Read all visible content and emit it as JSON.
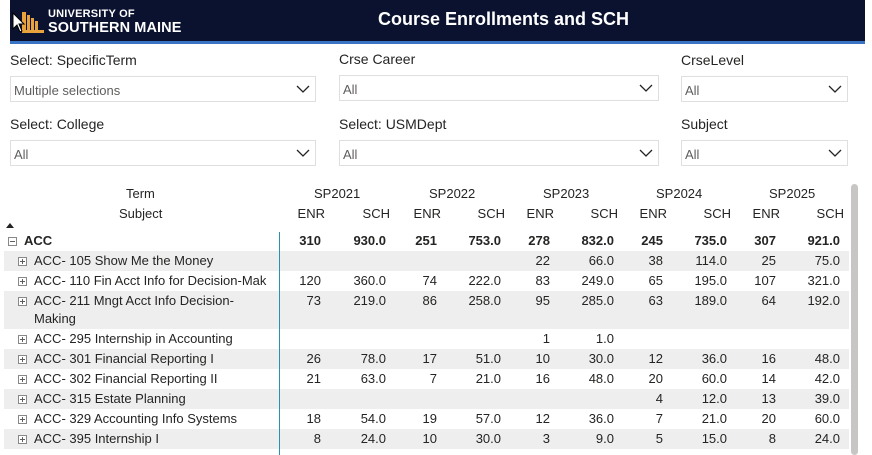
{
  "header": {
    "logo_line1": "UNIVERSITY OF",
    "logo_line2": "SOUTHERN MAINE",
    "title": "Course Enrollments and SCH"
  },
  "slicers": [
    {
      "label": "Select: SpecificTerm",
      "value": "Multiple selections"
    },
    {
      "label": "Crse Career",
      "value": "All"
    },
    {
      "label": "CrseLevel",
      "value": "All"
    },
    {
      "label": "Select: College",
      "value": "All"
    },
    {
      "label": "Select: USMDept",
      "value": "All"
    },
    {
      "label": "Subject",
      "value": "All"
    }
  ],
  "matrix": {
    "row_header_term": "Term",
    "row_header_subject": "Subject",
    "terms": [
      "SP2021",
      "SP2022",
      "SP2023",
      "SP2024",
      "SP2025"
    ],
    "measures": [
      "ENR",
      "SCH"
    ],
    "group": {
      "label": "ACC",
      "values": [
        "310",
        "930.0",
        "251",
        "753.0",
        "278",
        "832.0",
        "245",
        "735.0",
        "307",
        "921.0"
      ]
    },
    "rows": [
      {
        "label": "ACC- 105 Show Me the Money",
        "values": [
          "",
          "",
          "",
          "",
          "22",
          "66.0",
          "38",
          "114.0",
          "25",
          "75.0"
        ]
      },
      {
        "label": "ACC- 110 Fin Acct Info for Decision-Mak",
        "values": [
          "120",
          "360.0",
          "74",
          "222.0",
          "83",
          "249.0",
          "65",
          "195.0",
          "107",
          "321.0"
        ]
      },
      {
        "label": "ACC- 211 Mngt Acct Info Decision-",
        "label2": "Making",
        "values": [
          "73",
          "219.0",
          "86",
          "258.0",
          "95",
          "285.0",
          "63",
          "189.0",
          "64",
          "192.0"
        ]
      },
      {
        "label": "ACC- 295 Internship in Accounting",
        "values": [
          "",
          "",
          "",
          "",
          "1",
          "1.0",
          "",
          "",
          "",
          ""
        ]
      },
      {
        "label": "ACC- 301 Financial Reporting I",
        "values": [
          "26",
          "78.0",
          "17",
          "51.0",
          "10",
          "30.0",
          "12",
          "36.0",
          "16",
          "48.0"
        ]
      },
      {
        "label": "ACC- 302 Financial Reporting II",
        "values": [
          "21",
          "63.0",
          "7",
          "21.0",
          "16",
          "48.0",
          "20",
          "60.0",
          "14",
          "42.0"
        ]
      },
      {
        "label": "ACC- 315 Estate Planning",
        "values": [
          "",
          "",
          "",
          "",
          "",
          "",
          "4",
          "12.0",
          "13",
          "39.0"
        ]
      },
      {
        "label": "ACC- 329 Accounting Info Systems",
        "values": [
          "18",
          "54.0",
          "19",
          "57.0",
          "12",
          "36.0",
          "7",
          "21.0",
          "20",
          "60.0"
        ]
      },
      {
        "label": "ACC- 395 Internship I",
        "values": [
          "8",
          "24.0",
          "10",
          "30.0",
          "3",
          "9.0",
          "5",
          "15.0",
          "8",
          "24.0"
        ]
      }
    ]
  }
}
